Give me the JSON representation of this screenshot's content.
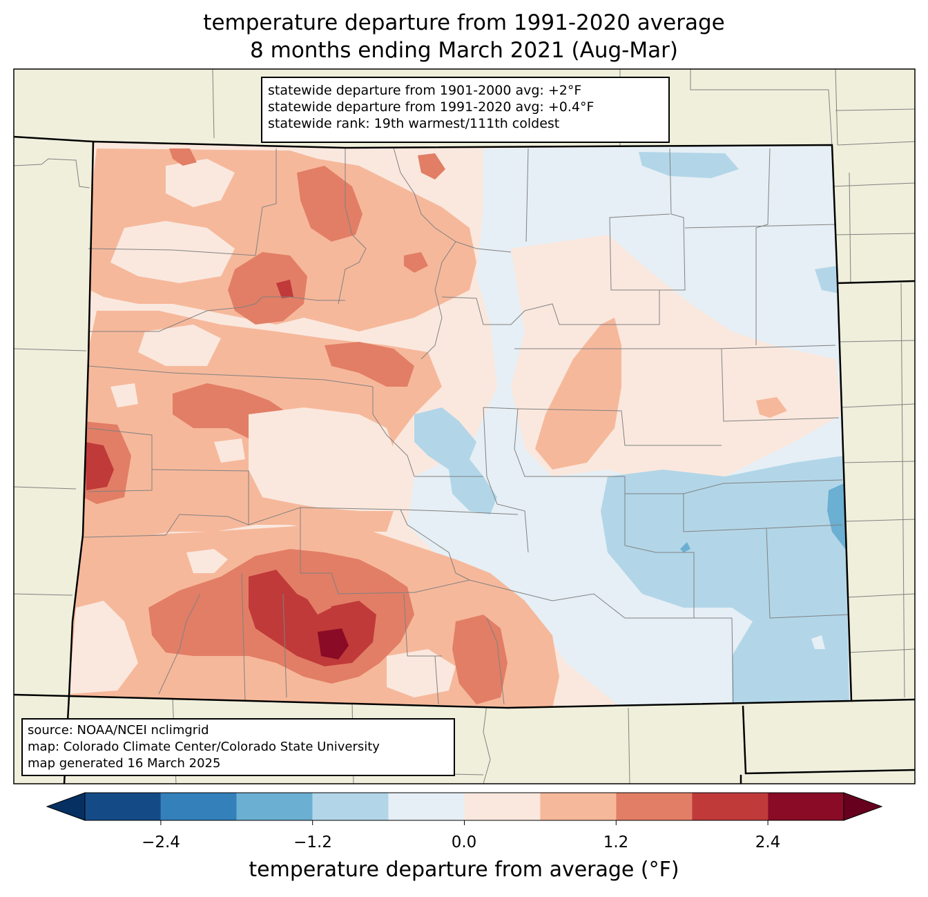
{
  "title": {
    "line1": "temperature departure from 1991-2020 average",
    "line2": "8 months ending March 2021 (Aug-Mar)"
  },
  "stats": {
    "line1": "statewide departure from 1901-2000 avg: +2°F",
    "line2": "statewide departure from 1991-2020 avg: +0.4°F",
    "line3": "statewide rank: 19th warmest/111th coldest"
  },
  "source": {
    "line1": "source: NOAA/NCEI nclimgrid",
    "line2": "map: Colorado Climate Center/Colorado State University",
    "line3": "map generated 16 March 2025"
  },
  "colorbar": {
    "label": "temperature departure from average (°F)",
    "ticks": [
      "−2.4",
      "−1.2",
      "0.0",
      "1.2",
      "2.4"
    ],
    "bins": [
      -3.0,
      -2.4,
      -1.8,
      -1.2,
      -0.6,
      0.0,
      0.6,
      1.2,
      1.8,
      2.4,
      3.0
    ],
    "colors": [
      "#053061",
      "#144b87",
      "#3380bb",
      "#6bafd2",
      "#b2d6e8",
      "#e6eff5",
      "#fae8de",
      "#f6b89b",
      "#e27e66",
      "#c03a3a",
      "#890b25",
      "#67001f"
    ]
  },
  "map_colors": {
    "land_outside": "#efefdc",
    "state_border": "#000000",
    "county_border": "#808080"
  }
}
